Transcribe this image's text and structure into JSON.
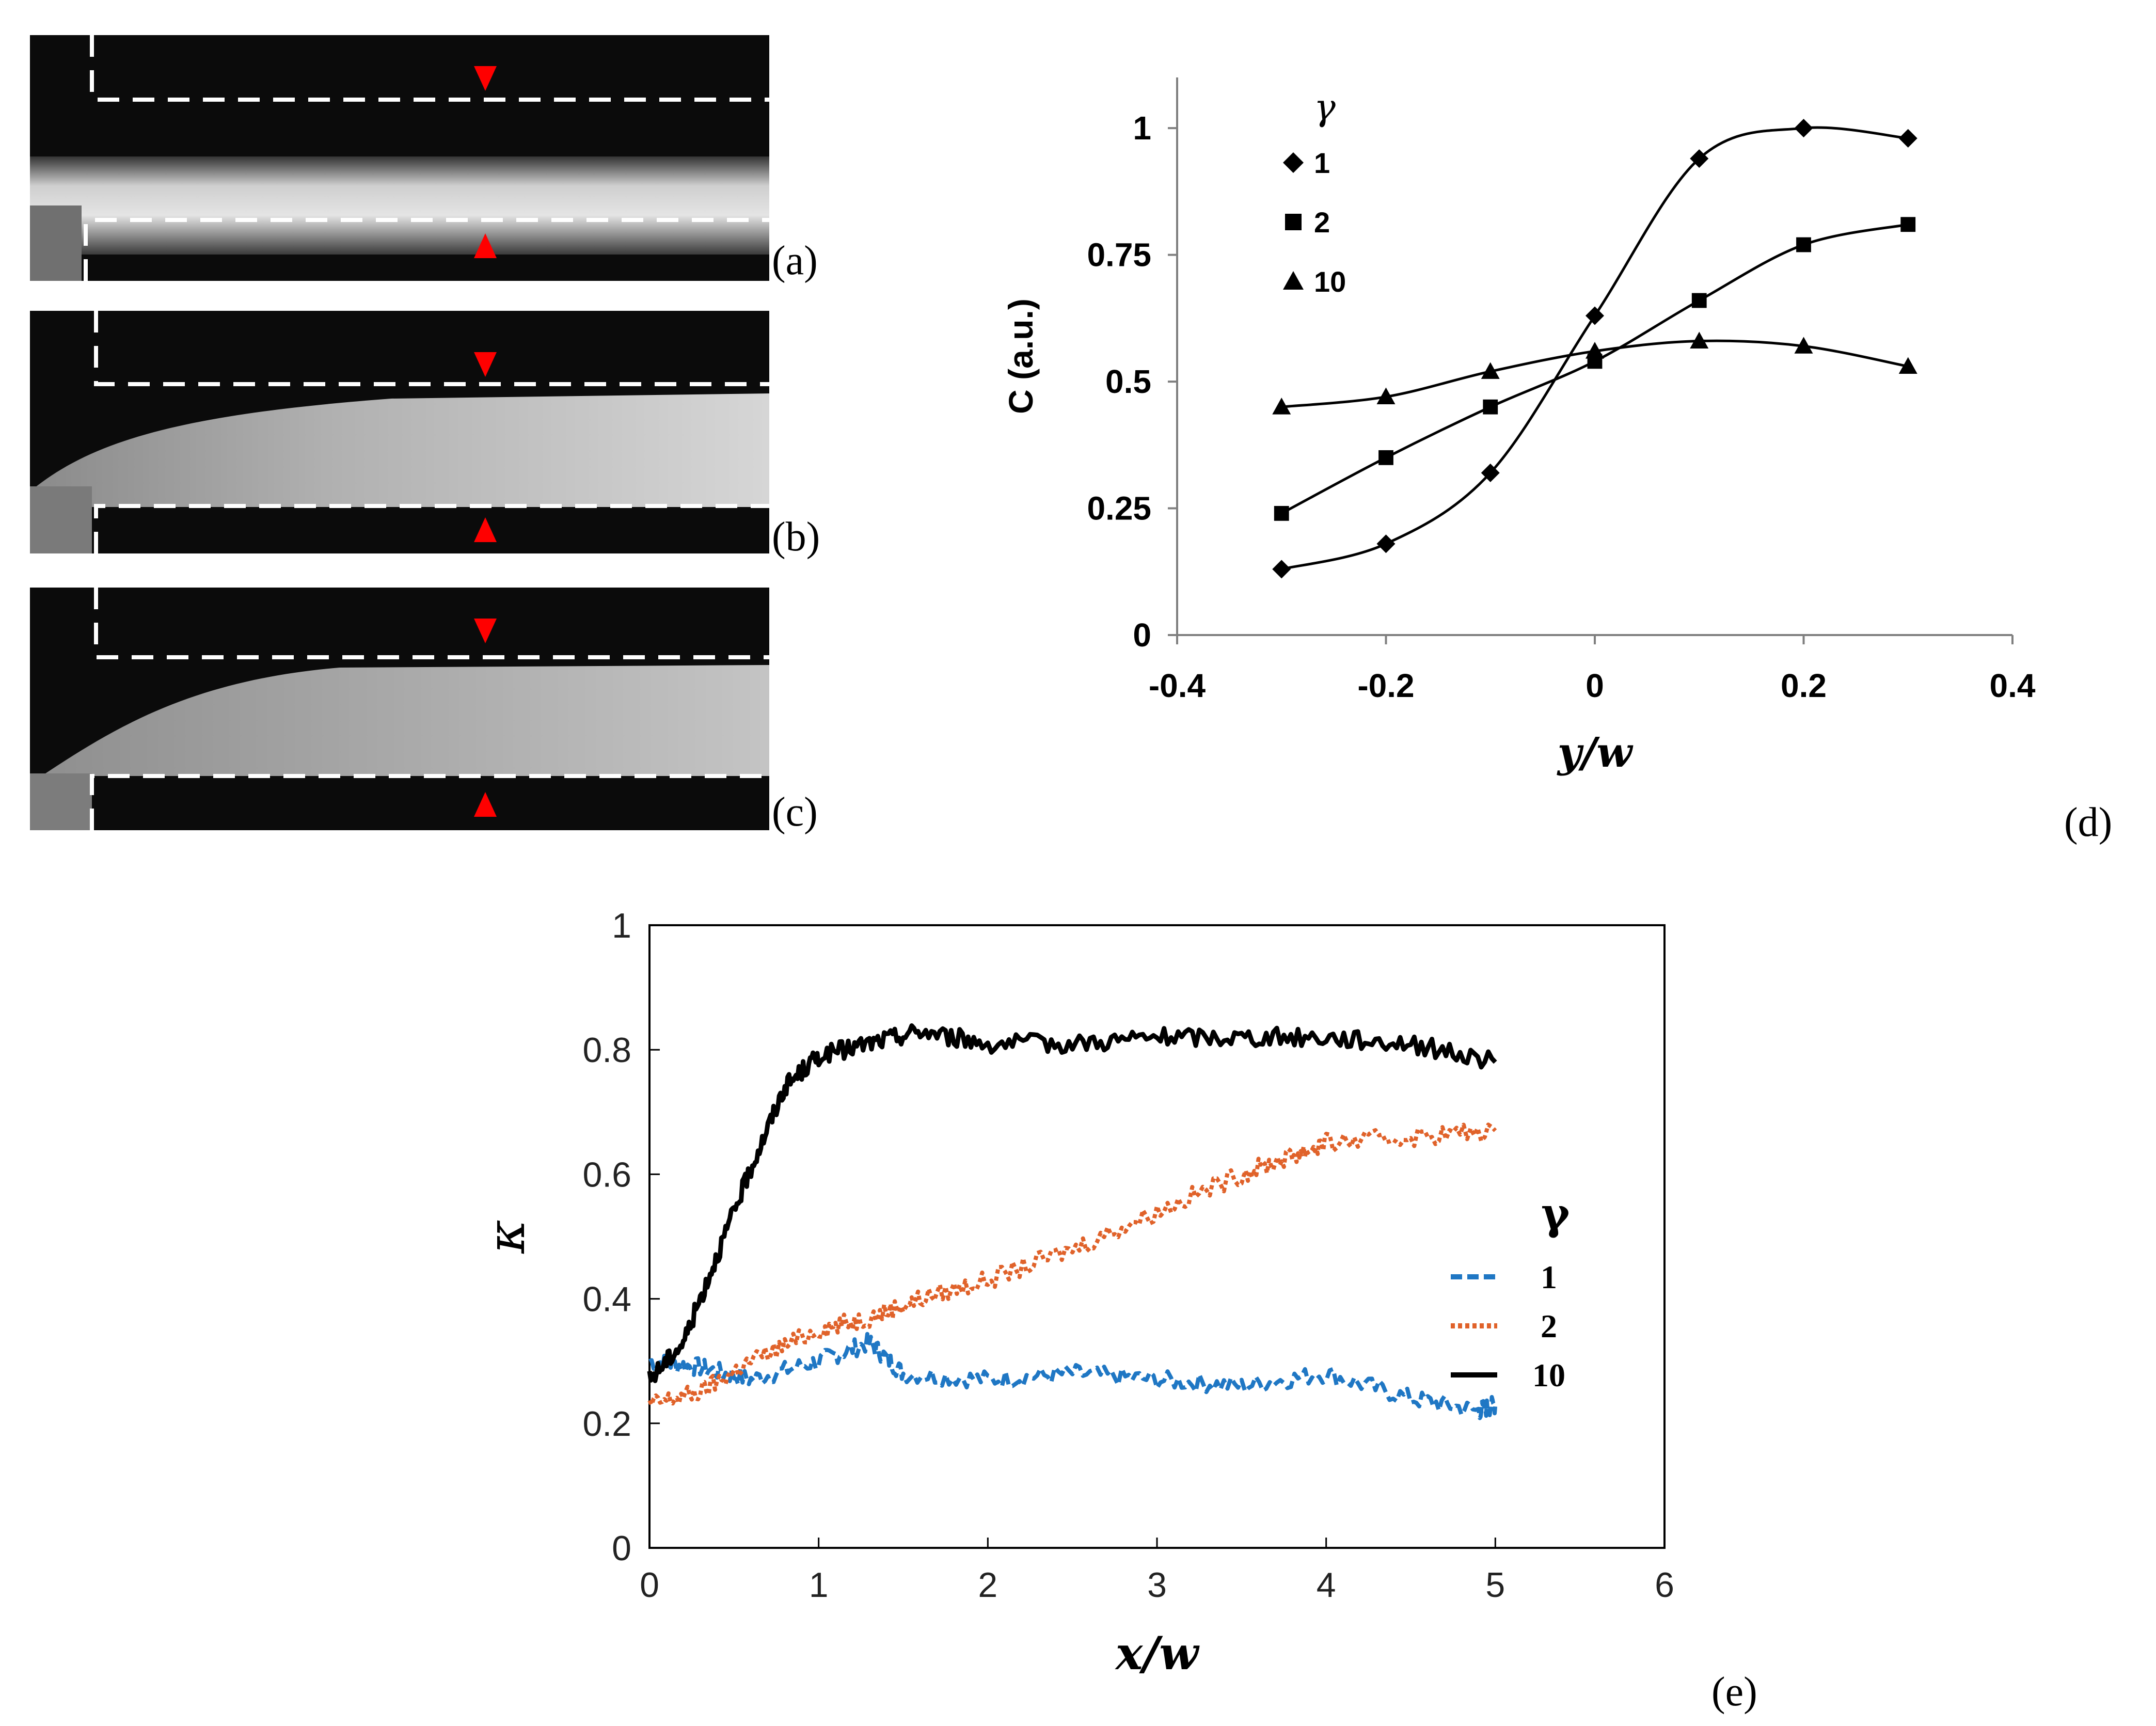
{
  "panels": {
    "a": "(a)",
    "b": "(b)",
    "c": "(c)",
    "d": "(d)",
    "e": "(e)"
  },
  "colors": {
    "marker_red": "#ff0000",
    "channel_dash": "#ffffff",
    "gamma1": "#1f77c4",
    "gamma2": "#e0622a",
    "gamma10": "#000000"
  },
  "chart_data": [
    {
      "id": "d",
      "type": "scatter",
      "title": "",
      "xlabel": "y/w",
      "ylabel": "C (a.u.)",
      "xlim": [
        -0.4,
        0.4
      ],
      "ylim": [
        0,
        1.1
      ],
      "x_ticks": [
        "-0.4",
        "-0.2",
        "0",
        "0.2",
        "0.4"
      ],
      "y_ticks": [
        "0",
        "0.25",
        "0.5",
        "0.75",
        "1"
      ],
      "legend_title": "γ",
      "legend_position": "top-left",
      "x": [
        -0.3,
        -0.2,
        -0.1,
        0,
        0.1,
        0.2,
        0.3
      ],
      "series": [
        {
          "name": "1",
          "marker": "diamond",
          "values": [
            0.13,
            0.18,
            0.32,
            0.63,
            0.94,
            1.0,
            0.98
          ]
        },
        {
          "name": "2",
          "marker": "square",
          "values": [
            0.24,
            0.35,
            0.45,
            0.54,
            0.66,
            0.77,
            0.81
          ]
        },
        {
          "name": "10",
          "marker": "triangle",
          "values": [
            0.45,
            0.47,
            0.52,
            0.56,
            0.58,
            0.57,
            0.53
          ]
        }
      ]
    },
    {
      "id": "e",
      "type": "line",
      "title": "",
      "xlabel": "x/w",
      "ylabel": "κ",
      "xlim": [
        0,
        6
      ],
      "ylim": [
        0,
        1
      ],
      "x_ticks": [
        "0",
        "1",
        "2",
        "3",
        "4",
        "5",
        "6"
      ],
      "y_ticks": [
        "0",
        "0.2",
        "0.4",
        "0.6",
        "0.8",
        "1"
      ],
      "legend_title": "γ",
      "legend_position": "center-right",
      "series": [
        {
          "name": "1",
          "style": "dashed",
          "x": [
            0,
            0.3,
            0.6,
            1.0,
            1.3,
            1.5,
            2.0,
            2.5,
            3.0,
            3.5,
            4.0,
            4.5,
            4.9,
            5.0
          ],
          "y": [
            0.3,
            0.29,
            0.27,
            0.3,
            0.33,
            0.28,
            0.27,
            0.28,
            0.27,
            0.26,
            0.28,
            0.24,
            0.22,
            0.23
          ]
        },
        {
          "name": "2",
          "style": "dotted",
          "x": [
            0,
            0.3,
            0.6,
            1.0,
            1.3,
            1.6,
            2.0,
            2.5,
            3.0,
            3.5,
            3.8,
            4.0,
            4.5,
            5.0
          ],
          "y": [
            0.23,
            0.25,
            0.3,
            0.35,
            0.37,
            0.4,
            0.43,
            0.48,
            0.54,
            0.6,
            0.63,
            0.65,
            0.66,
            0.67
          ]
        },
        {
          "name": "10",
          "style": "solid",
          "x": [
            0,
            0.2,
            0.4,
            0.6,
            0.8,
            1.0,
            1.3,
            1.6,
            2.0,
            2.5,
            3.0,
            3.5,
            4.0,
            4.5,
            5.0
          ],
          "y": [
            0.27,
            0.33,
            0.47,
            0.61,
            0.74,
            0.79,
            0.81,
            0.83,
            0.81,
            0.81,
            0.82,
            0.82,
            0.82,
            0.81,
            0.78
          ]
        }
      ]
    }
  ]
}
